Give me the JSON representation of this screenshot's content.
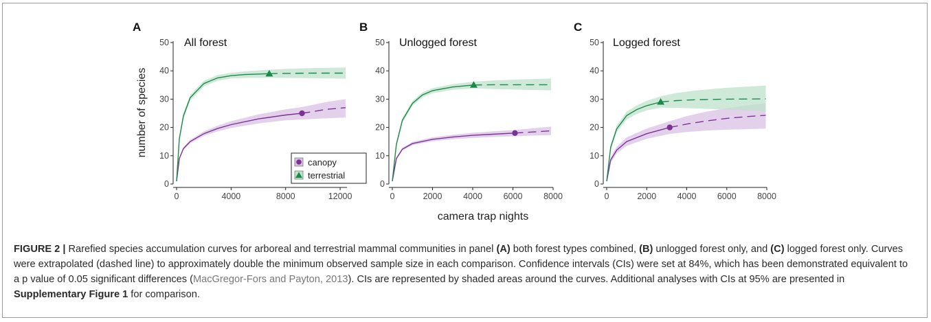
{
  "figure": {
    "ylabel": "number of species",
    "xlabel": "camera trap nights",
    "legend": {
      "canopy": "canopy",
      "terrestrial": "terrestrial"
    }
  },
  "colors": {
    "canopy": "#7b3294",
    "canopy_band": "#d9c2e6",
    "terrestrial": "#1a8a4a",
    "terrestrial_band": "#bfe2cc"
  },
  "chart_data": [
    {
      "type": "line",
      "panel_label": "A",
      "title": "All forest",
      "xlim": [
        0,
        12500
      ],
      "ylim": [
        0,
        50
      ],
      "xticks": [
        0,
        4000,
        8000,
        12000
      ],
      "yticks": [
        0,
        10,
        20,
        30,
        40,
        50
      ],
      "series": [
        {
          "name": "canopy",
          "observed_end": 9200,
          "observed_value": 25,
          "x": [
            1,
            200,
            500,
            1000,
            2000,
            3000,
            4000,
            6000,
            8000,
            9200,
            10000,
            11000,
            12400
          ],
          "y": [
            1,
            9,
            12.5,
            15,
            17.8,
            19.6,
            21,
            23,
            24.4,
            25,
            25.6,
            26.4,
            27
          ],
          "ci_low": [
            1,
            8.5,
            12,
            14.4,
            17,
            18.6,
            19.8,
            21.4,
            22.5,
            22.8,
            23,
            23.2,
            23.5
          ],
          "ci_high": [
            1,
            9.5,
            13,
            15.6,
            18.6,
            20.6,
            22.2,
            24.6,
            26.4,
            27.2,
            28,
            29,
            30
          ]
        },
        {
          "name": "terrestrial",
          "observed_end": 6800,
          "observed_value": 39,
          "x": [
            1,
            200,
            500,
            1000,
            2000,
            3000,
            4000,
            5000,
            6800,
            8000,
            10000,
            12400
          ],
          "y": [
            1,
            16,
            24,
            30.5,
            35.5,
            37.5,
            38.3,
            38.7,
            39,
            39.1,
            39.2,
            39.2
          ],
          "ci_low": [
            1,
            15,
            23,
            29.5,
            34.5,
            36.5,
            37.3,
            37.5,
            37.6,
            37.5,
            37.4,
            37.2
          ],
          "ci_high": [
            1,
            17,
            25,
            31.5,
            36.5,
            38.5,
            39.3,
            39.8,
            40.4,
            40.7,
            41,
            41.2
          ]
        }
      ]
    },
    {
      "type": "line",
      "panel_label": "B",
      "title": "Unlogged forest",
      "xlim": [
        0,
        8000
      ],
      "ylim": [
        0,
        50
      ],
      "xticks": [
        0,
        2000,
        4000,
        6000,
        8000
      ],
      "yticks": [
        0,
        10,
        20,
        30,
        40,
        50
      ],
      "series": [
        {
          "name": "canopy",
          "observed_end": 6100,
          "observed_value": 18,
          "x": [
            1,
            200,
            500,
            1000,
            2000,
            3000,
            4000,
            5000,
            6100,
            7000,
            7900
          ],
          "y": [
            1,
            9,
            12.3,
            14.3,
            15.8,
            16.6,
            17.2,
            17.6,
            18,
            18.4,
            18.8
          ],
          "ci_low": [
            1,
            8.6,
            11.8,
            13.7,
            15.1,
            15.8,
            16.3,
            16.6,
            16.9,
            17.1,
            17.3
          ],
          "ci_high": [
            1,
            9.4,
            12.8,
            14.9,
            16.5,
            17.4,
            18.1,
            18.6,
            19.1,
            19.7,
            20.3
          ]
        },
        {
          "name": "terrestrial",
          "observed_end": 4050,
          "observed_value": 35,
          "x": [
            1,
            200,
            500,
            1000,
            1500,
            2000,
            3000,
            4050,
            5000,
            6000,
            7900
          ],
          "y": [
            1,
            14,
            22.5,
            28.5,
            31.5,
            33,
            34.3,
            35,
            35.1,
            35.1,
            35.1
          ],
          "ci_low": [
            1,
            13.2,
            21.6,
            27.6,
            30.6,
            32.1,
            33.3,
            33.8,
            33.6,
            33.4,
            33.1
          ],
          "ci_high": [
            1,
            14.8,
            23.4,
            29.4,
            32.4,
            33.9,
            35.3,
            36.2,
            36.6,
            36.9,
            37.3
          ]
        }
      ]
    },
    {
      "type": "line",
      "panel_label": "C",
      "title": "Logged forest",
      "xlim": [
        0,
        8000
      ],
      "ylim": [
        0,
        50
      ],
      "xticks": [
        0,
        2000,
        4000,
        6000,
        8000
      ],
      "yticks": [
        0,
        10,
        20,
        30,
        40,
        50
      ],
      "series": [
        {
          "name": "canopy",
          "observed_end": 3150,
          "observed_value": 20,
          "x": [
            1,
            200,
            500,
            1000,
            2000,
            3150,
            4000,
            5000,
            6000,
            7000,
            7950
          ],
          "y": [
            1,
            8.5,
            12,
            15,
            17.8,
            20,
            21.2,
            22.3,
            23.2,
            23.8,
            24.3
          ],
          "ci_low": [
            1,
            7.5,
            10.8,
            13.5,
            16,
            17.7,
            18.4,
            18.9,
            19.2,
            19.4,
            19.6
          ],
          "ci_high": [
            1,
            9.5,
            13.2,
            16.5,
            19.6,
            22.2,
            24,
            25.6,
            26.8,
            27.8,
            28.6
          ]
        },
        {
          "name": "terrestrial",
          "observed_end": 2700,
          "observed_value": 29,
          "x": [
            1,
            200,
            500,
            1000,
            1500,
            2000,
            2700,
            3500,
            4500,
            6000,
            7950
          ],
          "y": [
            1,
            13,
            19.5,
            24.2,
            26.3,
            27.7,
            29,
            29.5,
            29.8,
            30,
            30.1
          ],
          "ci_low": [
            1,
            12,
            18.3,
            22.8,
            24.8,
            26,
            27,
            26.9,
            26.7,
            26.3,
            25.7
          ],
          "ci_high": [
            1,
            14,
            20.7,
            25.6,
            27.8,
            29.4,
            31,
            32.2,
            33.1,
            34,
            34.8
          ]
        }
      ]
    }
  ],
  "caption": {
    "lead": "FIGURE 2 |",
    "t1": " Rarefied species accumulation curves for arboreal and terrestrial mammal communities in panel ",
    "b1": "(A)",
    "t2": " both forest types combined, ",
    "b2": "(B)",
    "t3": " unlogged forest only, and ",
    "b3": "(C)",
    "t4": " logged forest only. Curves were extrapolated (dashed line) to approximately double the minimum observed sample size in each comparison. Confidence intervals (CIs) were set at 84%, which has been demonstrated equivalent to a p value of 0.05 significant differences (",
    "link": "MacGregor-Fors and Payton, 2013",
    "t5": "). CIs are represented by shaded areas around the curves. Additional analyses with CIs at 95% are presented in ",
    "b4": "Supplementary Figure 1",
    "t6": " for comparison."
  }
}
